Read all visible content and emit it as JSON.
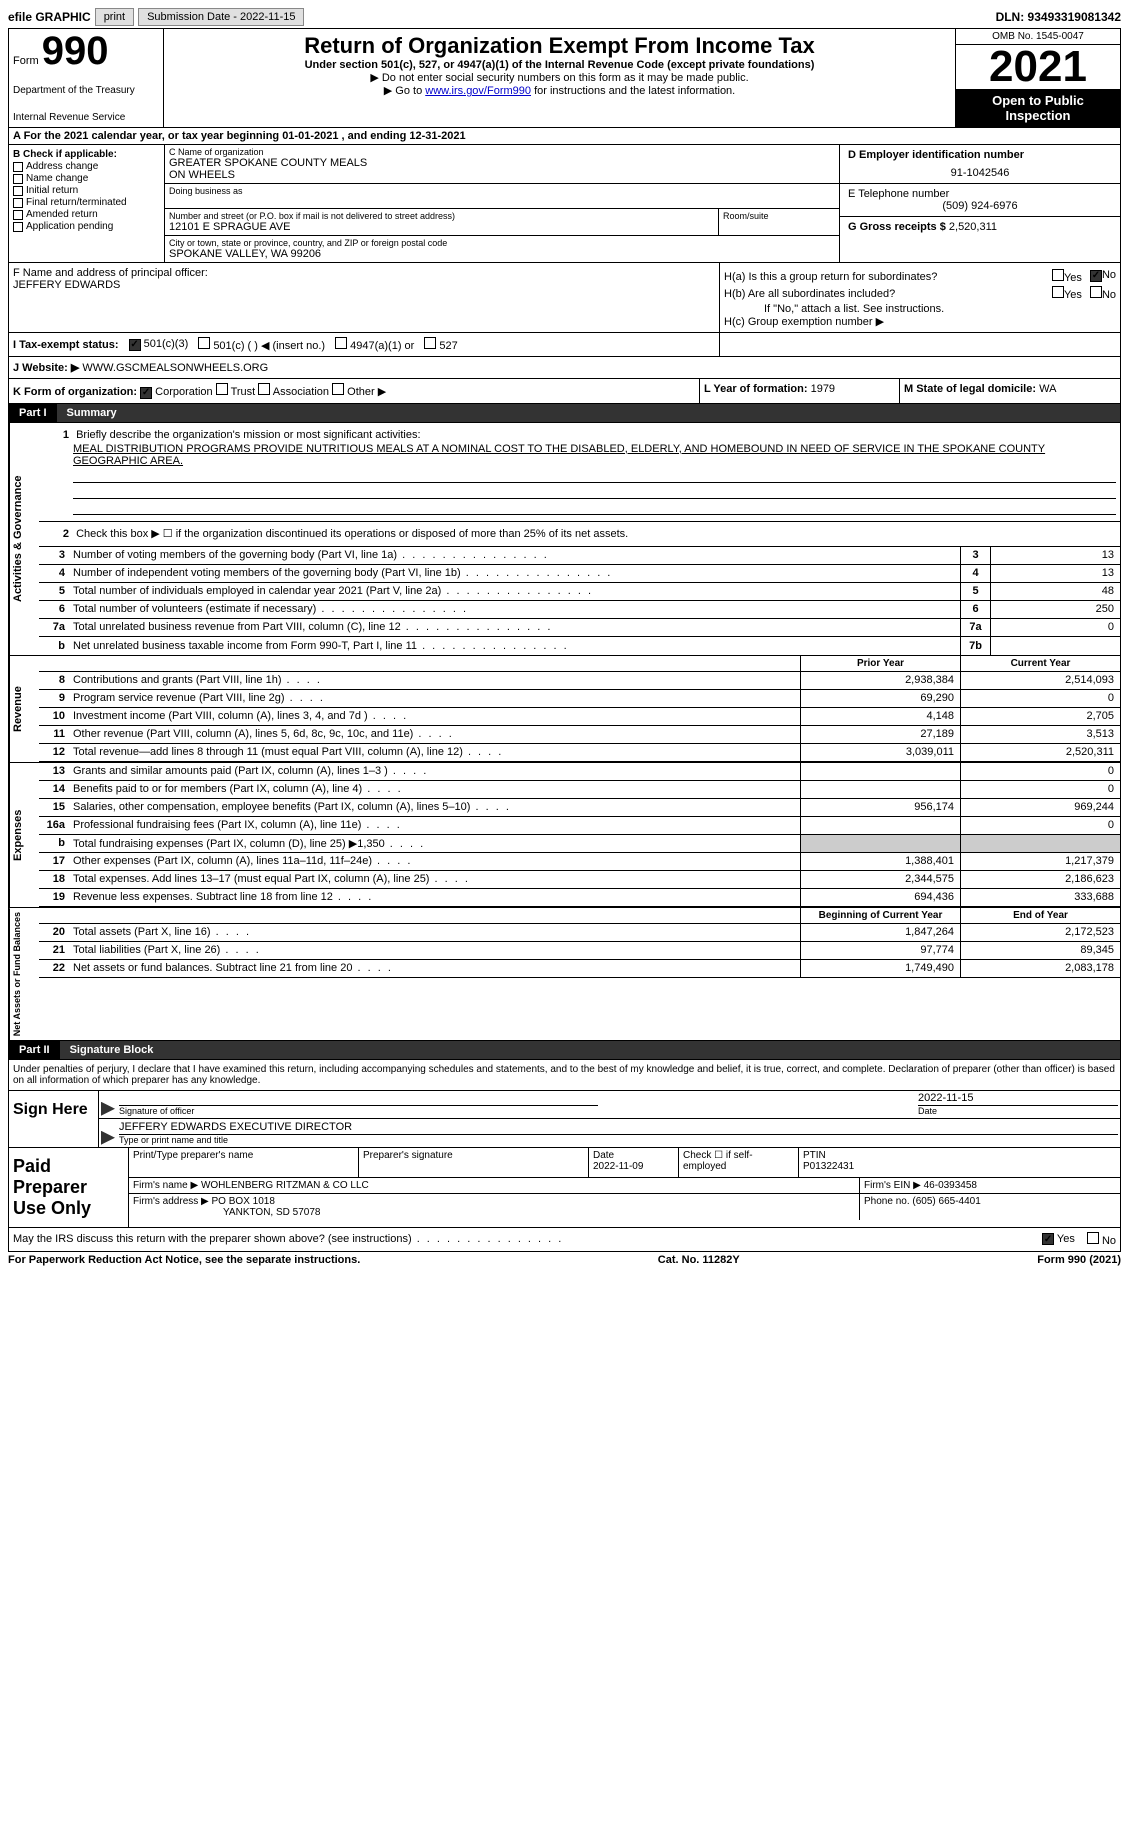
{
  "topbar": {
    "efile": "efile GRAPHIC",
    "print": "print",
    "sub_label": "Submission Date - 2022-11-15",
    "dln": "DLN: 93493319081342"
  },
  "header": {
    "form_word": "Form",
    "form_num": "990",
    "dept": "Department of the Treasury",
    "irs": "Internal Revenue Service",
    "title": "Return of Organization Exempt From Income Tax",
    "subtitle": "Under section 501(c), 527, or 4947(a)(1) of the Internal Revenue Code (except private foundations)",
    "note1": "▶ Do not enter social security numbers on this form as it may be made public.",
    "note2_pre": "▶ Go to ",
    "note2_link": "www.irs.gov/Form990",
    "note2_post": " for instructions and the latest information.",
    "omb": "OMB No. 1545-0047",
    "year": "2021",
    "inspect": "Open to Public Inspection"
  },
  "row_a": "A For the 2021 calendar year, or tax year beginning 01-01-2021   , and ending 12-31-2021",
  "section_b": {
    "label": "B Check if applicable:",
    "addr_change": "Address change",
    "name_change": "Name change",
    "initial": "Initial return",
    "final": "Final return/terminated",
    "amended": "Amended return",
    "app_pending": "Application pending"
  },
  "section_c": {
    "name_label": "C Name of organization",
    "name1": "GREATER SPOKANE COUNTY MEALS",
    "name2": "ON WHEELS",
    "dba_label": "Doing business as",
    "addr_label": "Number and street (or P.O. box if mail is not delivered to street address)",
    "addr": "12101 E SPRAGUE AVE",
    "room_label": "Room/suite",
    "city_label": "City or town, state or province, country, and ZIP or foreign postal code",
    "city": "SPOKANE VALLEY, WA  99206"
  },
  "section_d": {
    "ein_label": "D Employer identification number",
    "ein": "91-1042546",
    "phone_label": "E Telephone number",
    "phone": "(509) 924-6976",
    "gross_label": "G Gross receipts $",
    "gross": "2,520,311"
  },
  "section_f": {
    "label": "F Name and address of principal officer:",
    "name": "JEFFERY EDWARDS"
  },
  "section_h": {
    "a_label": "H(a)  Is this a group return for subordinates?",
    "b_label": "H(b)  Are all subordinates included?",
    "b_note": "If \"No,\" attach a list. See instructions.",
    "c_label": "H(c)  Group exemption number ▶",
    "yes": "Yes",
    "no": "No"
  },
  "section_i": {
    "label": "I   Tax-exempt status:",
    "c3": "501(c)(3)",
    "c_other": "501(c) (  ) ◀ (insert no.)",
    "a1": "4947(a)(1) or",
    "s527": "527"
  },
  "section_j": {
    "label": "J   Website: ▶",
    "url": "WWW.GSCMEALSONWHEELS.ORG"
  },
  "section_k": {
    "label": "K Form of organization:",
    "corp": "Corporation",
    "trust": "Trust",
    "assoc": "Association",
    "other": "Other ▶",
    "l_label": "L Year of formation:",
    "l_val": "1979",
    "m_label": "M State of legal domicile:",
    "m_val": "WA"
  },
  "part1": {
    "num": "Part I",
    "title": "Summary"
  },
  "summary": {
    "sec1_label": "Activities & Governance",
    "sec2_label": "Revenue",
    "sec3_label": "Expenses",
    "sec4_label": "Net Assets or Fund Balances",
    "q1": "Briefly describe the organization's mission or most significant activities:",
    "mission": "MEAL DISTRIBUTION PROGRAMS PROVIDE NUTRITIOUS MEALS AT A NOMINAL COST TO THE DISABLED, ELDERLY, AND HOMEBOUND IN NEED OF SERVICE IN THE SPOKANE COUNTY GEOGRAPHIC AREA.",
    "q2": "Check this box ▶ ☐ if the organization discontinued its operations or disposed of more than 25% of its net assets.",
    "rows1": [
      {
        "n": "3",
        "d": "Number of voting members of the governing body (Part VI, line 1a)",
        "b": "3",
        "v": "13"
      },
      {
        "n": "4",
        "d": "Number of independent voting members of the governing body (Part VI, line 1b)",
        "b": "4",
        "v": "13"
      },
      {
        "n": "5",
        "d": "Total number of individuals employed in calendar year 2021 (Part V, line 2a)",
        "b": "5",
        "v": "48"
      },
      {
        "n": "6",
        "d": "Total number of volunteers (estimate if necessary)",
        "b": "6",
        "v": "250"
      },
      {
        "n": "7a",
        "d": "Total unrelated business revenue from Part VIII, column (C), line 12",
        "b": "7a",
        "v": "0"
      },
      {
        "n": "b",
        "d": "Net unrelated business taxable income from Form 990-T, Part I, line 11",
        "b": "7b",
        "v": ""
      }
    ],
    "hdr_prior": "Prior Year",
    "hdr_current": "Current Year",
    "rows2": [
      {
        "n": "8",
        "d": "Contributions and grants (Part VIII, line 1h)",
        "p": "2,938,384",
        "c": "2,514,093"
      },
      {
        "n": "9",
        "d": "Program service revenue (Part VIII, line 2g)",
        "p": "69,290",
        "c": "0"
      },
      {
        "n": "10",
        "d": "Investment income (Part VIII, column (A), lines 3, 4, and 7d )",
        "p": "4,148",
        "c": "2,705"
      },
      {
        "n": "11",
        "d": "Other revenue (Part VIII, column (A), lines 5, 6d, 8c, 9c, 10c, and 11e)",
        "p": "27,189",
        "c": "3,513"
      },
      {
        "n": "12",
        "d": "Total revenue—add lines 8 through 11 (must equal Part VIII, column (A), line 12)",
        "p": "3,039,011",
        "c": "2,520,311"
      }
    ],
    "rows3": [
      {
        "n": "13",
        "d": "Grants and similar amounts paid (Part IX, column (A), lines 1–3 )",
        "p": "",
        "c": "0"
      },
      {
        "n": "14",
        "d": "Benefits paid to or for members (Part IX, column (A), line 4)",
        "p": "",
        "c": "0"
      },
      {
        "n": "15",
        "d": "Salaries, other compensation, employee benefits (Part IX, column (A), lines 5–10)",
        "p": "956,174",
        "c": "969,244"
      },
      {
        "n": "16a",
        "d": "Professional fundraising fees (Part IX, column (A), line 11e)",
        "p": "",
        "c": "0"
      },
      {
        "n": "b",
        "d": "Total fundraising expenses (Part IX, column (D), line 25) ▶1,350",
        "p": "SHADED",
        "c": "SHADED"
      },
      {
        "n": "17",
        "d": "Other expenses (Part IX, column (A), lines 11a–11d, 11f–24e)",
        "p": "1,388,401",
        "c": "1,217,379"
      },
      {
        "n": "18",
        "d": "Total expenses. Add lines 13–17 (must equal Part IX, column (A), line 25)",
        "p": "2,344,575",
        "c": "2,186,623"
      },
      {
        "n": "19",
        "d": "Revenue less expenses. Subtract line 18 from line 12",
        "p": "694,436",
        "c": "333,688"
      }
    ],
    "hdr_begin": "Beginning of Current Year",
    "hdr_end": "End of Year",
    "rows4": [
      {
        "n": "20",
        "d": "Total assets (Part X, line 16)",
        "p": "1,847,264",
        "c": "2,172,523"
      },
      {
        "n": "21",
        "d": "Total liabilities (Part X, line 26)",
        "p": "97,774",
        "c": "89,345"
      },
      {
        "n": "22",
        "d": "Net assets or fund balances. Subtract line 21 from line 20",
        "p": "1,749,490",
        "c": "2,083,178"
      }
    ]
  },
  "part2": {
    "num": "Part II",
    "title": "Signature Block",
    "intro": "Under penalties of perjury, I declare that I have examined this return, including accompanying schedules and statements, and to the best of my knowledge and belief, it is true, correct, and complete. Declaration of preparer (other than officer) is based on all information of which preparer has any knowledge."
  },
  "sign": {
    "here": "Sign Here",
    "sig_label": "Signature of officer",
    "date": "2022-11-15",
    "date_label": "Date",
    "name": "JEFFERY EDWARDS  EXECUTIVE DIRECTOR",
    "name_label": "Type or print name and title"
  },
  "prep": {
    "label": "Paid Preparer Use Only",
    "name_label": "Print/Type preparer's name",
    "sig_label": "Preparer's signature",
    "date_label": "Date",
    "date": "2022-11-09",
    "check_label": "Check ☐ if self-employed",
    "ptin_label": "PTIN",
    "ptin": "P01322431",
    "firm_name_label": "Firm's name    ▶",
    "firm_name": "WOHLENBERG RITZMAN & CO LLC",
    "firm_ein_label": "Firm's EIN ▶",
    "firm_ein": "46-0393458",
    "firm_addr_label": "Firm's address ▶",
    "firm_addr1": "PO BOX 1018",
    "firm_addr2": "YANKTON, SD  57078",
    "phone_label": "Phone no.",
    "phone": "(605) 665-4401"
  },
  "may": {
    "text": "May the IRS discuss this return with the preparer shown above? (see instructions)",
    "yes": "Yes",
    "no": "No"
  },
  "footer": {
    "left": "For Paperwork Reduction Act Notice, see the separate instructions.",
    "center": "Cat. No. 11282Y",
    "right": "Form 990 (2021)"
  }
}
